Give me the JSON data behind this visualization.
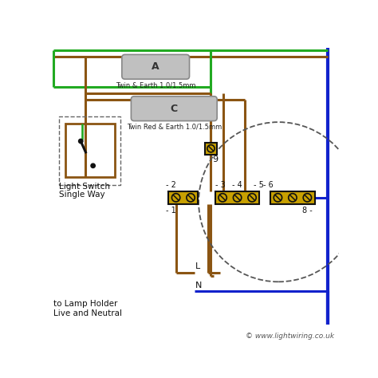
{
  "bg_color": "#ffffff",
  "GREEN": "#22aa22",
  "BROWN": "#8B5513",
  "BLUE": "#1122cc",
  "BLACK": "#111111",
  "GOLD": "#c8a000",
  "GRAY": "#c0c0c0",
  "cable_A_label": "A",
  "cable_A_sublabel": "Twin & Earth 1.0/1.5mm",
  "cable_C_label": "C",
  "cable_C_sublabel": "Twin Red & Earth 1.0/1.5mm",
  "switch_label1": "Single Way",
  "switch_label2": "Light Switch",
  "lamp_label1": "Live and Neutral",
  "lamp_label2": "to Lamp Holder",
  "L_label": "L",
  "N_label": "N",
  "copyright": "© www.lightwiring.co.uk",
  "lw": 2.2
}
